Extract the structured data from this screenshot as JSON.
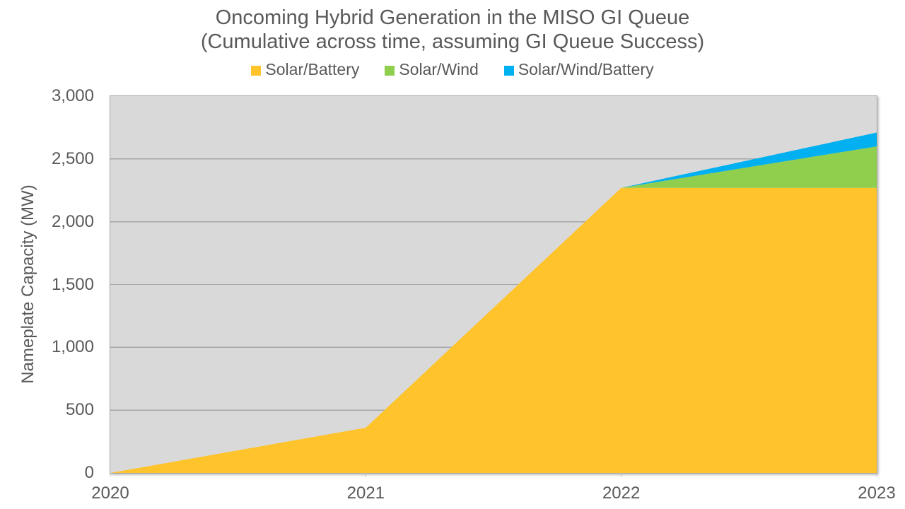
{
  "chart_data": {
    "type": "area",
    "stacked": true,
    "title": "Oncoming Hybrid Generation in the MISO GI Queue",
    "subtitle": "(Cumulative across time, assuming GI Queue Success)",
    "ylabel": "Nameplate Capacity (MW)",
    "xlabel": "",
    "x_labels": [
      "2020",
      "2021",
      "2022",
      "2023"
    ],
    "series": [
      {
        "name": "Solar/Battery",
        "color": "#FFC32B",
        "values": [
          0,
          360,
          2270,
          2270
        ]
      },
      {
        "name": "Solar/Wind",
        "color": "#90CF4E",
        "values": [
          0,
          0,
          0,
          330
        ]
      },
      {
        "name": "Solar/Wind/Battery",
        "color": "#00B0F0",
        "values": [
          0,
          0,
          0,
          110
        ]
      }
    ],
    "ylim": [
      0,
      3000
    ],
    "yticks": [
      0,
      500,
      1000,
      1500,
      2000,
      2500,
      3000
    ],
    "ytick_labels": [
      "0",
      "500",
      "1,000",
      "1,500",
      "2,000",
      "2,500",
      "3,000"
    ],
    "grid": true,
    "legend_position": "top",
    "colors": {
      "plot_background": "#D9D9D9",
      "gridline": "#A6A6A6",
      "plot_border": "#A6A6A6",
      "axis_tick_mark": "#BFBFBF",
      "text": "#595959",
      "page_background": "#FFFFFF"
    }
  }
}
